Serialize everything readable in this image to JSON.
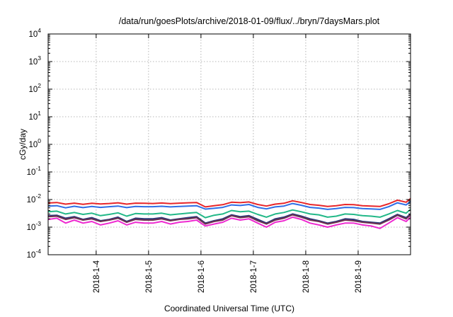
{
  "chart_data": {
    "type": "line",
    "title": "/data/run/goesPlots/archive/2018-01-09/flux/../bryn/7daysMars.plot",
    "xlabel": "Coordinated Universal Time (UTC)",
    "ylabel": "cGy/day",
    "yscale": "log",
    "ylim": [
      0.0001,
      10000
    ],
    "y_ticks": [
      {
        "base": "10",
        "exp": "-4"
      },
      {
        "base": "10",
        "exp": "-3"
      },
      {
        "base": "10",
        "exp": "-2"
      },
      {
        "base": "10",
        "exp": "-1"
      },
      {
        "base": "10",
        "exp": "0"
      },
      {
        "base": "10",
        "exp": "1"
      },
      {
        "base": "10",
        "exp": "2"
      },
      {
        "base": "10",
        "exp": "3"
      },
      {
        "base": "10",
        "exp": "4"
      }
    ],
    "xlim": [
      "2018-01-03T02:00",
      "2018-01-10T00:00"
    ],
    "x_ticks": [
      {
        "label": "2018-1-4",
        "at": "2018-01-04T00:00"
      },
      {
        "label": "2018-1-5",
        "at": "2018-01-05T00:00"
      },
      {
        "label": "2018-1-6",
        "at": "2018-01-06T00:00"
      },
      {
        "label": "2018-1-7",
        "at": "2018-01-07T00:00"
      },
      {
        "label": "2018-1-8",
        "at": "2018-01-08T00:00"
      },
      {
        "label": "2018-1-9",
        "at": "2018-01-09T00:00"
      }
    ],
    "grid": true,
    "x": [
      "2018-01-03T02:00",
      "2018-01-03T06:00",
      "2018-01-03T10:00",
      "2018-01-03T14:00",
      "2018-01-03T18:00",
      "2018-01-03T22:00",
      "2018-01-04T02:00",
      "2018-01-04T06:00",
      "2018-01-04T10:00",
      "2018-01-04T14:00",
      "2018-01-04T18:00",
      "2018-01-04T22:00",
      "2018-01-05T02:00",
      "2018-01-05T06:00",
      "2018-01-05T10:00",
      "2018-01-05T14:00",
      "2018-01-05T18:00",
      "2018-01-05T22:00",
      "2018-01-06T02:00",
      "2018-01-06T06:00",
      "2018-01-06T10:00",
      "2018-01-06T14:00",
      "2018-01-06T18:00",
      "2018-01-06T22:00",
      "2018-01-07T02:00",
      "2018-01-07T06:00",
      "2018-01-07T10:00",
      "2018-01-07T14:00",
      "2018-01-07T18:00",
      "2018-01-07T22:00",
      "2018-01-08T02:00",
      "2018-01-08T06:00",
      "2018-01-08T10:00",
      "2018-01-08T14:00",
      "2018-01-08T18:00",
      "2018-01-08T22:00",
      "2018-01-09T02:00",
      "2018-01-09T06:00",
      "2018-01-09T10:00",
      "2018-01-09T14:00",
      "2018-01-09T18:00",
      "2018-01-09T22:00",
      "2018-01-10T00:00"
    ],
    "series": [
      {
        "color": "#e8262a",
        "values": [
          0.0075,
          0.0078,
          0.0068,
          0.0074,
          0.0067,
          0.0073,
          0.0069,
          0.0072,
          0.0076,
          0.0068,
          0.0074,
          0.0073,
          0.0072,
          0.0075,
          0.0071,
          0.0074,
          0.0076,
          0.0078,
          0.0054,
          0.006,
          0.0065,
          0.008,
          0.0077,
          0.0082,
          0.0066,
          0.0058,
          0.0068,
          0.0073,
          0.009,
          0.0078,
          0.0066,
          0.0062,
          0.0056,
          0.006,
          0.0066,
          0.0065,
          0.006,
          0.0058,
          0.0056,
          0.007,
          0.0095,
          0.008,
          0.0108
        ]
      },
      {
        "color": "#2f6ee6",
        "values": [
          0.0058,
          0.006,
          0.005,
          0.0057,
          0.0051,
          0.0056,
          0.0052,
          0.0055,
          0.0058,
          0.0051,
          0.0056,
          0.0055,
          0.0055,
          0.0057,
          0.0054,
          0.0056,
          0.0058,
          0.006,
          0.0045,
          0.0048,
          0.0052,
          0.0064,
          0.0061,
          0.0066,
          0.0052,
          0.0046,
          0.0054,
          0.0058,
          0.0072,
          0.0062,
          0.0052,
          0.0049,
          0.0044,
          0.0047,
          0.0052,
          0.0051,
          0.0047,
          0.0046,
          0.0044,
          0.0055,
          0.0076,
          0.0064,
          0.0085
        ]
      },
      {
        "color": "#22b888",
        "values": [
          0.0036,
          0.0038,
          0.003,
          0.0034,
          0.0029,
          0.0032,
          0.0026,
          0.0029,
          0.0033,
          0.0025,
          0.0031,
          0.003,
          0.003,
          0.0032,
          0.0028,
          0.003,
          0.0032,
          0.0034,
          0.0022,
          0.0027,
          0.003,
          0.004,
          0.0036,
          0.0038,
          0.0029,
          0.0023,
          0.003,
          0.0034,
          0.0042,
          0.0036,
          0.003,
          0.0028,
          0.0023,
          0.0025,
          0.003,
          0.0029,
          0.0026,
          0.0025,
          0.0023,
          0.003,
          0.004,
          0.0032,
          0.0044
        ]
      },
      {
        "color": "#2a3a7a",
        "values": [
          0.0026,
          0.0027,
          0.0021,
          0.0024,
          0.0019,
          0.0022,
          0.0017,
          0.0019,
          0.0023,
          0.0016,
          0.0021,
          0.002,
          0.002,
          0.0022,
          0.0018,
          0.002,
          0.0022,
          0.0024,
          0.0014,
          0.0017,
          0.002,
          0.0028,
          0.0024,
          0.0026,
          0.0019,
          0.0014,
          0.002,
          0.0023,
          0.003,
          0.0025,
          0.002,
          0.0017,
          0.0014,
          0.0016,
          0.002,
          0.0019,
          0.0016,
          0.0015,
          0.0014,
          0.002,
          0.0029,
          0.0022,
          0.003
        ]
      },
      {
        "color": "#6e2f4f",
        "values": [
          0.0024,
          0.0025,
          0.0019,
          0.0022,
          0.0018,
          0.002,
          0.0016,
          0.0018,
          0.0021,
          0.0015,
          0.0019,
          0.0018,
          0.0018,
          0.002,
          0.0017,
          0.0019,
          0.002,
          0.0022,
          0.0013,
          0.0016,
          0.0018,
          0.0026,
          0.0022,
          0.0024,
          0.0017,
          0.0013,
          0.0018,
          0.0021,
          0.0028,
          0.0023,
          0.0018,
          0.0016,
          0.0013,
          0.0015,
          0.0018,
          0.0017,
          0.0015,
          0.0014,
          0.0013,
          0.0018,
          0.0027,
          0.002,
          0.0028
        ]
      },
      {
        "color": "#ee2ad0",
        "values": [
          0.0019,
          0.0021,
          0.0014,
          0.0018,
          0.0014,
          0.0016,
          0.0012,
          0.0014,
          0.0017,
          0.0012,
          0.0015,
          0.0014,
          0.0014,
          0.0016,
          0.0013,
          0.0015,
          0.0016,
          0.0018,
          0.0011,
          0.0013,
          0.0015,
          0.0021,
          0.0018,
          0.002,
          0.0014,
          0.001,
          0.0015,
          0.0017,
          0.0023,
          0.0019,
          0.0014,
          0.0012,
          0.001,
          0.0012,
          0.0014,
          0.0014,
          0.0012,
          0.0011,
          0.0009,
          0.0014,
          0.0022,
          0.0016,
          0.0023
        ]
      }
    ]
  }
}
